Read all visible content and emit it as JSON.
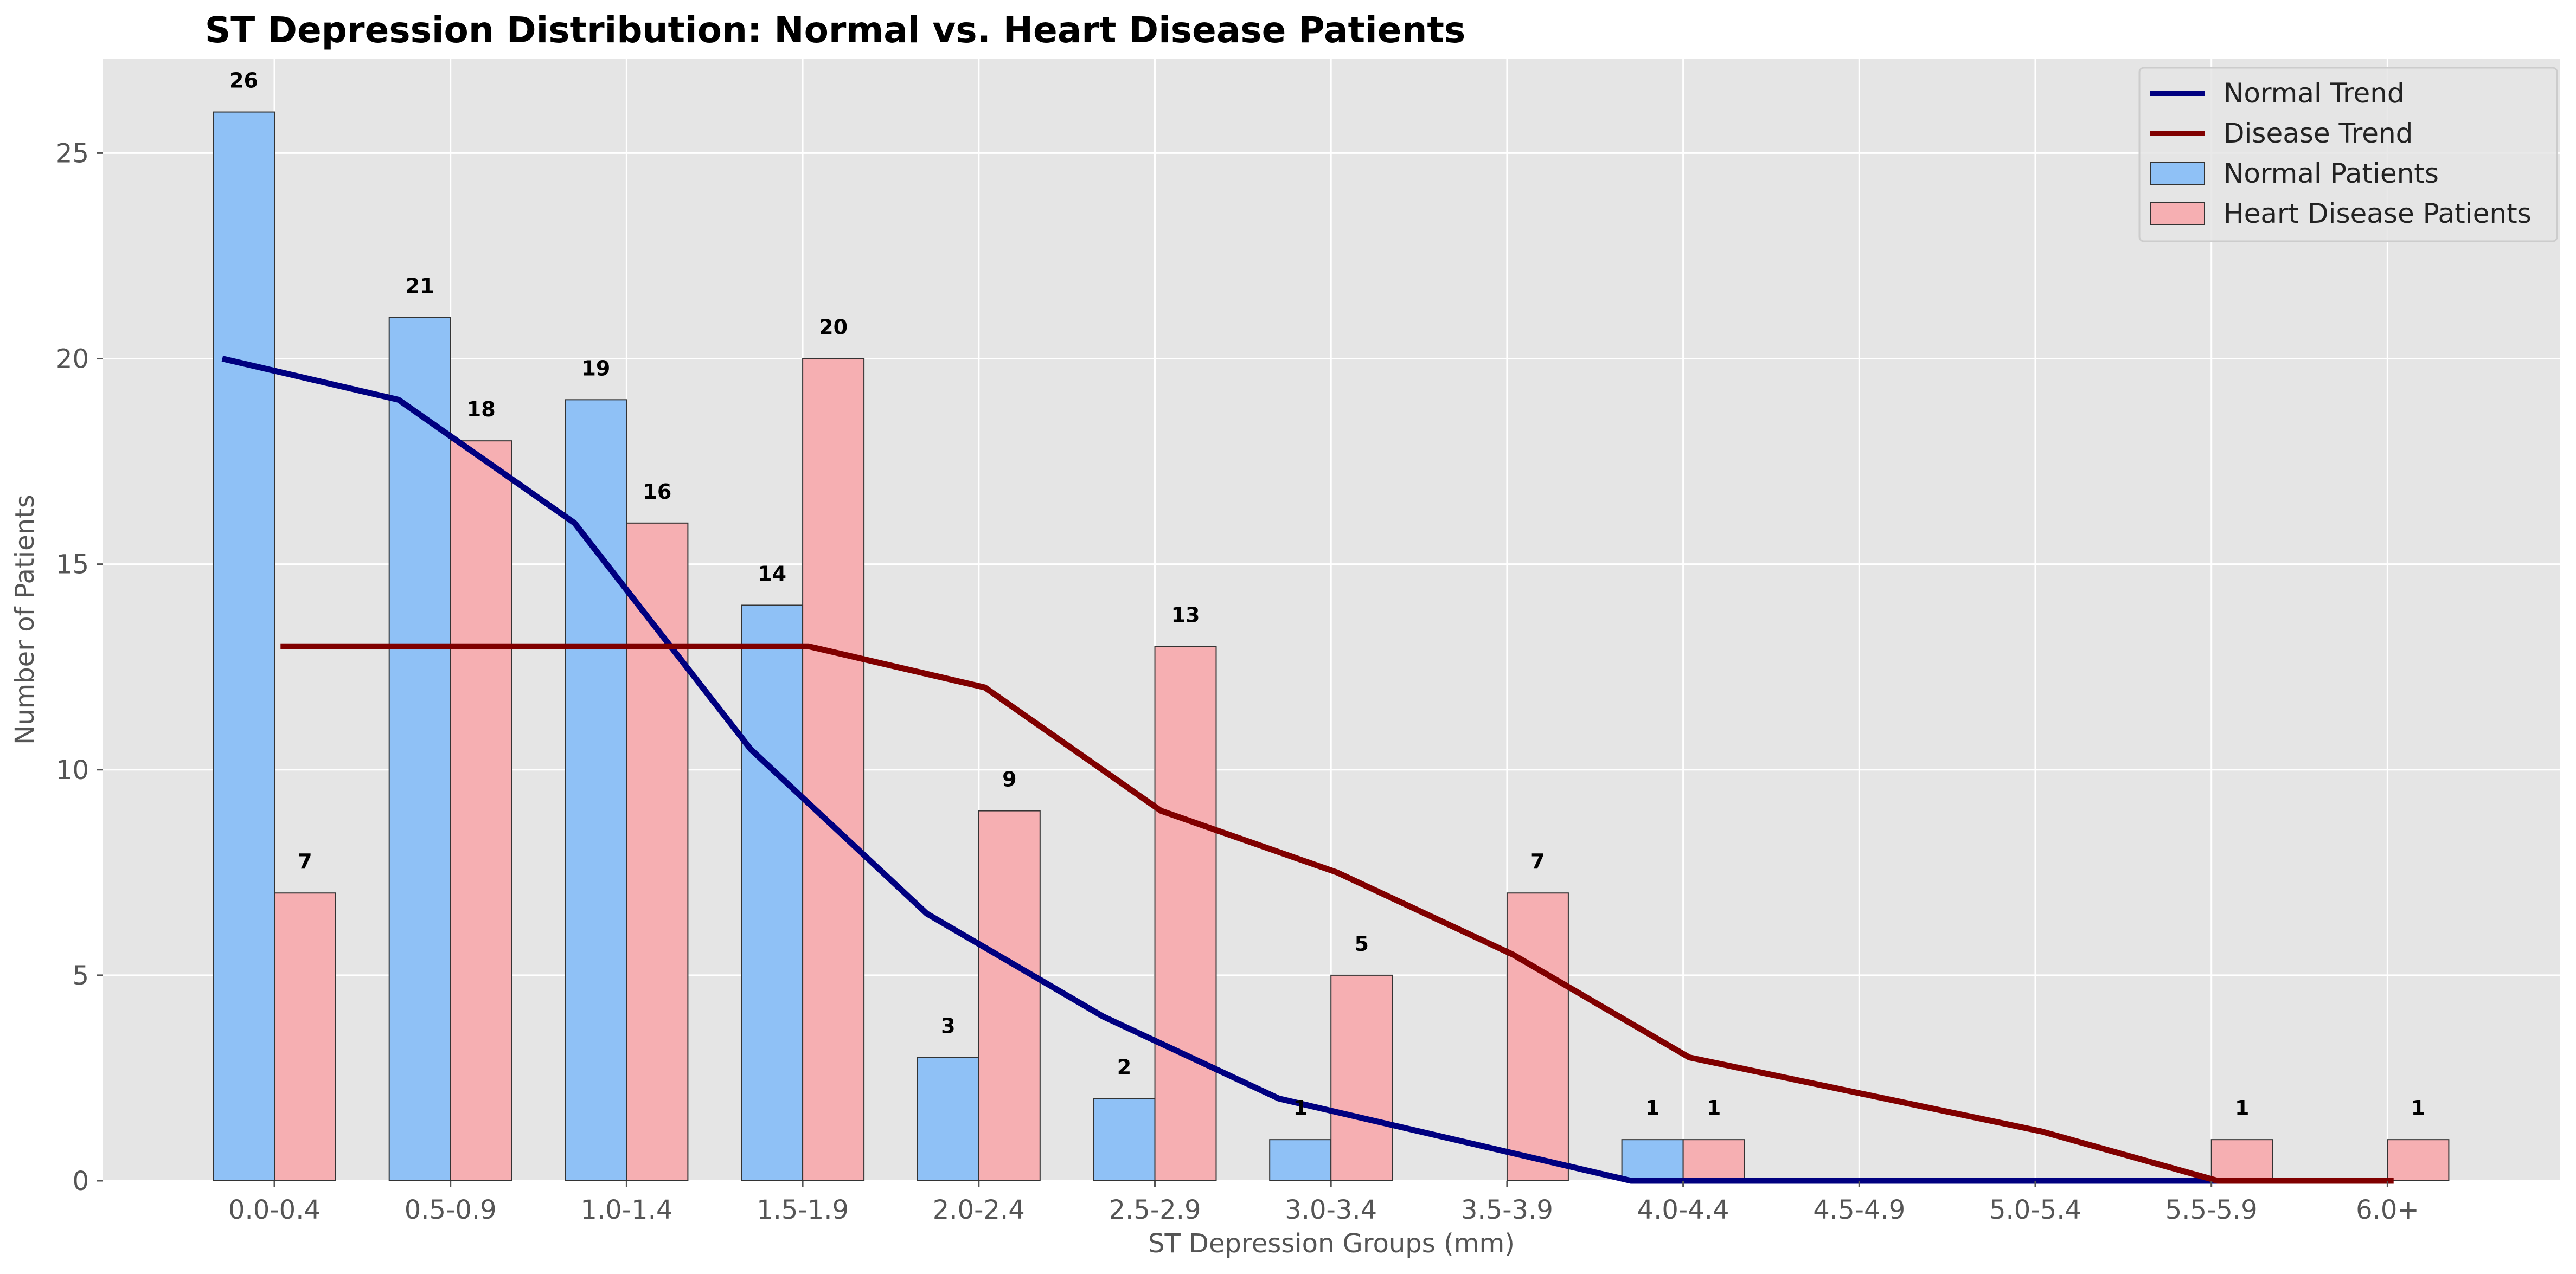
{
  "chart_data": {
    "type": "bar",
    "title": "ST Depression Distribution: Normal vs. Heart Disease Patients",
    "xlabel": "ST Depression Groups (mm)",
    "ylabel": "Number of Patients",
    "categories": [
      "0.0-0.4",
      "0.5-0.9",
      "1.0-1.4",
      "1.5-1.9",
      "2.0-2.4",
      "2.5-2.9",
      "3.0-3.4",
      "3.5-3.9",
      "4.0-4.4",
      "4.5-4.9",
      "5.0-5.4",
      "5.5-5.9",
      "6.0+"
    ],
    "series": [
      {
        "name": "Normal Patients",
        "kind": "bar",
        "color": "#8fc1f6",
        "values": [
          26,
          21,
          19,
          14,
          3,
          2,
          1,
          0,
          1,
          0,
          0,
          0,
          0
        ]
      },
      {
        "name": "Heart Disease Patients",
        "kind": "bar",
        "color": "#f6afb2",
        "values": [
          7,
          18,
          16,
          20,
          9,
          13,
          5,
          7,
          1,
          0,
          0,
          1,
          1
        ]
      },
      {
        "name": "Normal Trend",
        "kind": "line",
        "color": "#000080",
        "values": [
          20,
          19,
          16,
          10.5,
          6.5,
          4,
          2,
          1,
          0,
          0,
          0,
          0,
          0
        ]
      },
      {
        "name": "Disease Trend",
        "kind": "line",
        "color": "#800000",
        "values": [
          13,
          13,
          13,
          13,
          12,
          9,
          7.5,
          5.5,
          3,
          2.1,
          1.2,
          0,
          0
        ]
      }
    ],
    "ylim": [
      0,
      27.3
    ],
    "yticks": [
      0,
      5,
      10,
      15,
      20,
      25
    ],
    "grid": true,
    "legend_position": "top-right",
    "legend_order": [
      "Normal Trend",
      "Disease Trend",
      "Normal Patients",
      "Heart Disease Patients"
    ]
  }
}
